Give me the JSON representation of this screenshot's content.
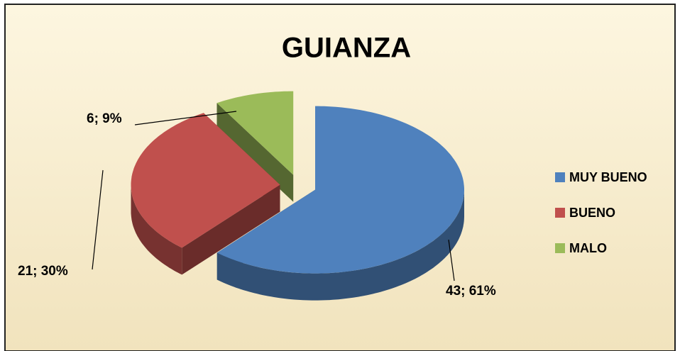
{
  "chart_data": {
    "type": "pie",
    "title": "GUIANZA",
    "categories": [
      "MUY BUENO",
      "BUENO",
      "MALO"
    ],
    "values": [
      43,
      21,
      6
    ],
    "value_labels": [
      "43; 61%",
      "21; 30%",
      "6; 9%"
    ],
    "colors": [
      "#4f81bd",
      "#c0504d",
      "#9bbb59"
    ],
    "legend": "right"
  }
}
